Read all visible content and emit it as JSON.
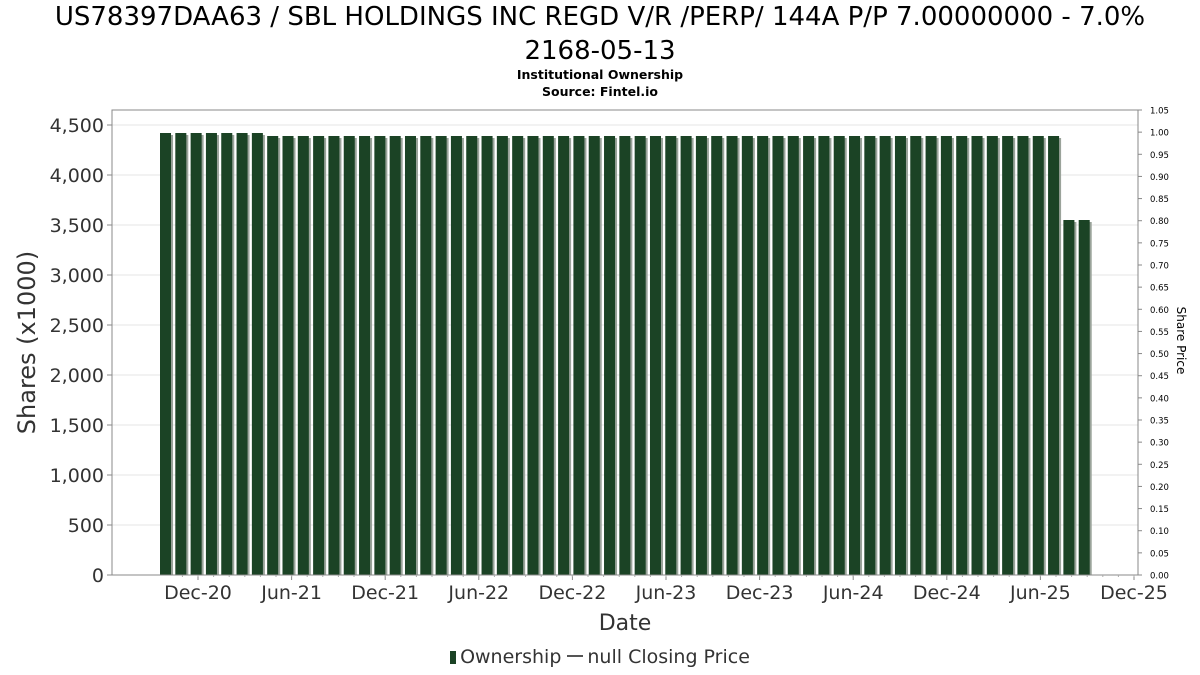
{
  "chart_title_line1": "US78397DAA63 / SBL HOLDINGS INC REGD V/R /PERP/ 144A P/P 7.00000000 - 7.0%",
  "chart_title_line2": "2168-05-13",
  "subtitle": "Institutional Ownership",
  "source": "Source: Fintel.io",
  "legend": {
    "ownership_label": "Ownership",
    "price_label": "null Closing Price"
  },
  "colors": {
    "bar": "#1b4325",
    "bar_shadow": "#9aa39a",
    "grid": "#e6e6e6",
    "axis": "#888888"
  },
  "chart_data": {
    "type": "bar",
    "title": "US78397DAA63 / SBL HOLDINGS INC REGD V/R /PERP/ 144A P/P 7.00000000 - 7.0% 2168-05-13",
    "xlabel": "Date",
    "ylabel": "Shares (x1000)",
    "y2label": "Share Price",
    "x_ticks": [
      "Dec-20",
      "Jun-21",
      "Dec-21",
      "Jun-22",
      "Dec-22",
      "Jun-23",
      "Dec-23",
      "Jun-24",
      "Dec-24",
      "Jun-25",
      "Dec-25"
    ],
    "y_ticks": [
      "0",
      "500",
      "1,000",
      "1,500",
      "2,000",
      "2,500",
      "3,000",
      "3,500",
      "4,000",
      "4,500"
    ],
    "y2_ticks": [
      "0.00",
      "0.05",
      "0.10",
      "0.15",
      "0.20",
      "0.25",
      "0.30",
      "0.35",
      "0.40",
      "0.45",
      "0.50",
      "0.55",
      "0.60",
      "0.65",
      "0.70",
      "0.75",
      "0.80",
      "0.85",
      "0.90",
      "0.95",
      "1.00",
      "1.05"
    ],
    "ylim": [
      0,
      4650
    ],
    "y2lim": [
      0,
      1.05
    ],
    "grid": true,
    "legend_position": "bottom",
    "series": [
      {
        "name": "Ownership",
        "values": [
          4420,
          4420,
          4420,
          4420,
          4420,
          4420,
          4420,
          4390,
          4390,
          4390,
          4390,
          4390,
          4390,
          4390,
          4390,
          4390,
          4390,
          4390,
          4390,
          4390,
          4390,
          4390,
          4390,
          4390,
          4390,
          4390,
          4390,
          4390,
          4390,
          4390,
          4390,
          4390,
          4390,
          4390,
          4390,
          4390,
          4390,
          4390,
          4390,
          4390,
          4390,
          4390,
          4390,
          4390,
          4390,
          4390,
          4390,
          4390,
          4390,
          4390,
          4390,
          4390,
          4390,
          4390,
          4390,
          4390,
          4390,
          4390,
          4390,
          3550,
          3550
        ]
      }
    ]
  }
}
